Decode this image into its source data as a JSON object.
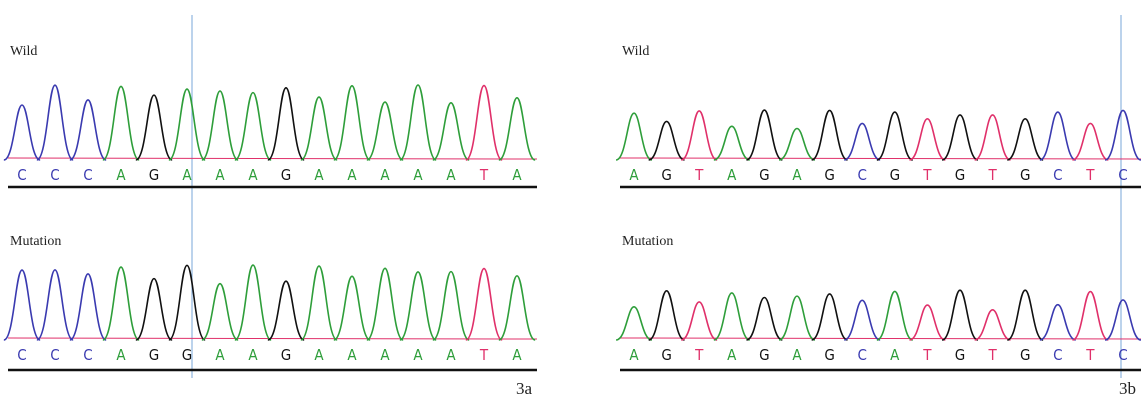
{
  "panels": [
    {
      "caption": "3a",
      "tracks": [
        {
          "label": "Wild",
          "bases": [
            "C",
            "C",
            "C",
            "A",
            "G",
            "A",
            "A",
            "A",
            "G",
            "A",
            "A",
            "A",
            "A",
            "A",
            "T",
            "A"
          ]
        },
        {
          "label": "Mutation",
          "bases": [
            "C",
            "C",
            "C",
            "A",
            "G",
            "G",
            "A",
            "A",
            "G",
            "A",
            "A",
            "A",
            "A",
            "A",
            "T",
            "A"
          ]
        }
      ]
    },
    {
      "caption": "3b",
      "tracks": [
        {
          "label": "Wild",
          "bases": [
            "A",
            "G",
            "T",
            "A",
            "G",
            "A",
            "G",
            "C",
            "G",
            "T",
            "G",
            "T",
            "G",
            "C",
            "T",
            "C"
          ]
        },
        {
          "label": "Mutation",
          "bases": [
            "A",
            "G",
            "T",
            "A",
            "G",
            "A",
            "G",
            "C",
            "A",
            "T",
            "G",
            "T",
            "G",
            "C",
            "T",
            "C"
          ]
        }
      ]
    }
  ]
}
